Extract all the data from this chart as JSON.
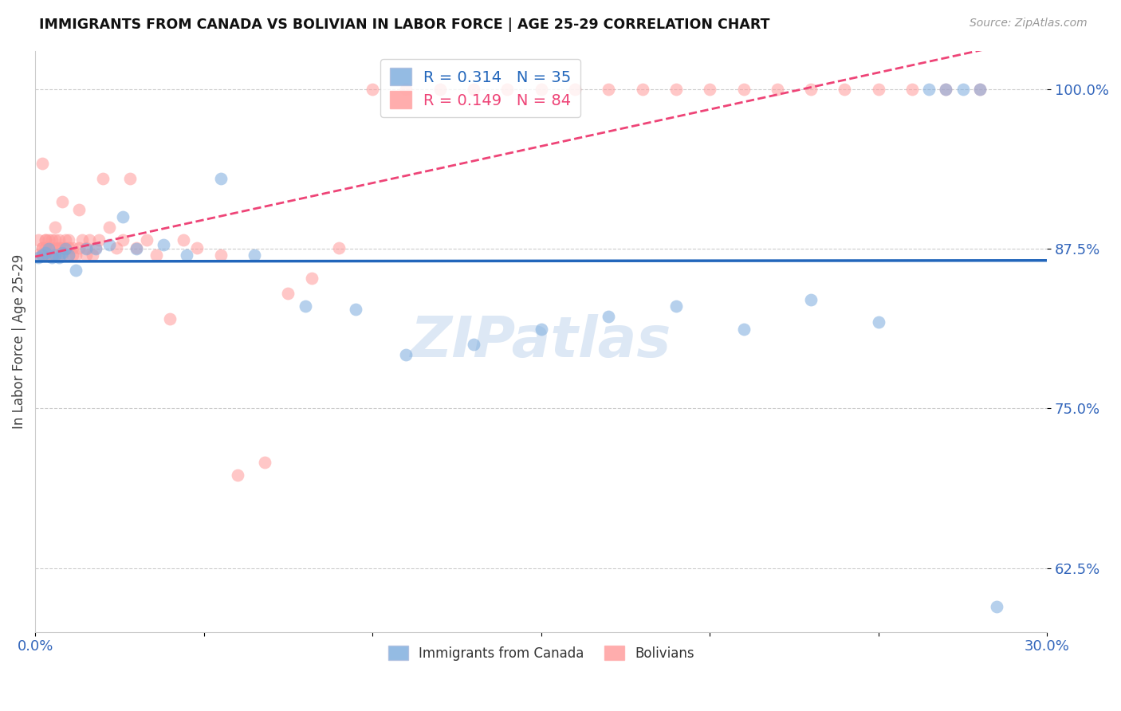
{
  "title": "IMMIGRANTS FROM CANADA VS BOLIVIAN IN LABOR FORCE | AGE 25-29 CORRELATION CHART",
  "source": "Source: ZipAtlas.com",
  "ylabel": "In Labor Force | Age 25-29",
  "ytick_vals": [
    1.0,
    0.875,
    0.75,
    0.625
  ],
  "xlim": [
    0.0,
    0.3
  ],
  "ylim": [
    0.575,
    1.03
  ],
  "canada_R": 0.314,
  "canada_N": 35,
  "bolivia_R": 0.149,
  "bolivia_N": 84,
  "canada_color": "#7aaadd",
  "bolivia_color": "#ff9999",
  "canada_line_color": "#2266bb",
  "bolivia_line_color": "#ee4477",
  "canada_x": [
    0.001,
    0.002,
    0.003,
    0.004,
    0.005,
    0.006,
    0.007,
    0.008,
    0.009,
    0.01,
    0.012,
    0.015,
    0.018,
    0.022,
    0.026,
    0.03,
    0.038,
    0.045,
    0.055,
    0.065,
    0.08,
    0.095,
    0.11,
    0.13,
    0.15,
    0.17,
    0.19,
    0.21,
    0.23,
    0.25,
    0.265,
    0.27,
    0.275,
    0.28,
    0.285
  ],
  "canada_y": [
    0.868,
    0.87,
    0.872,
    0.875,
    0.868,
    0.87,
    0.868,
    0.872,
    0.875,
    0.87,
    0.858,
    0.875,
    0.875,
    0.878,
    0.9,
    0.875,
    0.878,
    0.87,
    0.93,
    0.87,
    0.83,
    0.828,
    0.792,
    0.8,
    0.812,
    0.822,
    0.83,
    0.812,
    0.835,
    0.818,
    1.0,
    1.0,
    1.0,
    1.0,
    0.595
  ],
  "bolivia_x": [
    0.001,
    0.001,
    0.002,
    0.002,
    0.002,
    0.002,
    0.002,
    0.003,
    0.003,
    0.003,
    0.003,
    0.003,
    0.004,
    0.004,
    0.004,
    0.004,
    0.005,
    0.005,
    0.005,
    0.005,
    0.006,
    0.006,
    0.006,
    0.006,
    0.007,
    0.007,
    0.007,
    0.007,
    0.008,
    0.008,
    0.008,
    0.009,
    0.009,
    0.01,
    0.01,
    0.01,
    0.011,
    0.011,
    0.012,
    0.013,
    0.013,
    0.014,
    0.015,
    0.015,
    0.016,
    0.017,
    0.018,
    0.019,
    0.02,
    0.022,
    0.024,
    0.026,
    0.028,
    0.03,
    0.033,
    0.036,
    0.04,
    0.044,
    0.048,
    0.055,
    0.06,
    0.068,
    0.075,
    0.082,
    0.09,
    0.1,
    0.11,
    0.12,
    0.13,
    0.14,
    0.15,
    0.16,
    0.17,
    0.18,
    0.19,
    0.2,
    0.21,
    0.22,
    0.23,
    0.24,
    0.25,
    0.26,
    0.27,
    0.28
  ],
  "bolivia_y": [
    0.87,
    0.882,
    0.87,
    0.876,
    0.942,
    0.876,
    0.87,
    0.876,
    0.882,
    0.87,
    0.882,
    0.876,
    0.87,
    0.876,
    0.882,
    0.87,
    0.87,
    0.882,
    0.876,
    0.87,
    0.892,
    0.876,
    0.882,
    0.87,
    0.876,
    0.882,
    0.87,
    0.876,
    0.912,
    0.876,
    0.87,
    0.882,
    0.876,
    0.87,
    0.876,
    0.882,
    0.87,
    0.876,
    0.87,
    0.906,
    0.876,
    0.882,
    0.87,
    0.876,
    0.882,
    0.87,
    0.876,
    0.882,
    0.93,
    0.892,
    0.876,
    0.882,
    0.93,
    0.876,
    0.882,
    0.87,
    0.82,
    0.882,
    0.876,
    0.87,
    0.698,
    0.708,
    0.84,
    0.852,
    0.876,
    1.0,
    1.0,
    1.0,
    1.0,
    1.0,
    1.0,
    1.0,
    1.0,
    1.0,
    1.0,
    1.0,
    1.0,
    1.0,
    1.0,
    1.0,
    1.0,
    1.0,
    1.0,
    1.0
  ],
  "watermark": "ZIPatlas",
  "watermark_color": "#dde8f5"
}
